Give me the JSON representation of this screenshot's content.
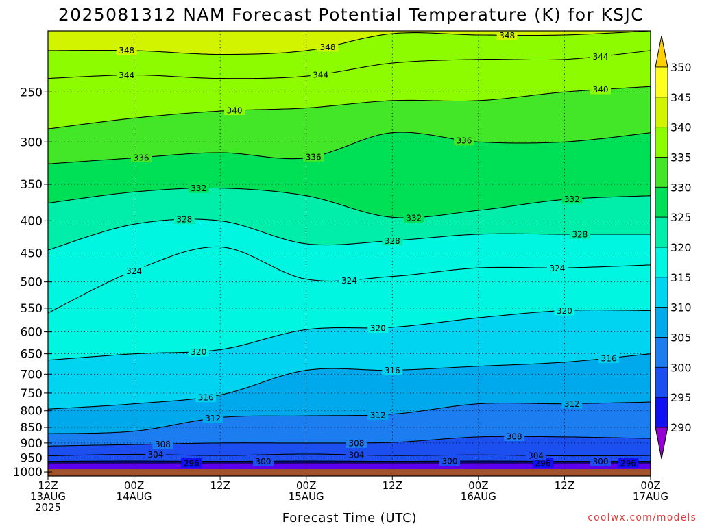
{
  "chart_data": {
    "type": "heatmap",
    "title": "2025081312 NAM Forecast Potential Temperature (K) for KSJC",
    "xlabel": "Forecast Time (UTC)",
    "ylabel": "",
    "x_ticks": [
      {
        "line1": "12Z",
        "line2": "13AUG",
        "line3": "2025"
      },
      {
        "line1": "00Z",
        "line2": "14AUG",
        "line3": ""
      },
      {
        "line1": "12Z",
        "line2": "",
        "line3": ""
      },
      {
        "line1": "00Z",
        "line2": "15AUG",
        "line3": ""
      },
      {
        "line1": "12Z",
        "line2": "",
        "line3": ""
      },
      {
        "line1": "00Z",
        "line2": "16AUG",
        "line3": ""
      },
      {
        "line1": "12Z",
        "line2": "",
        "line3": ""
      },
      {
        "line1": "00Z",
        "line2": "17AUG",
        "line3": ""
      }
    ],
    "forecast_hours": [
      0,
      12,
      24,
      36,
      48,
      60,
      72,
      84
    ],
    "xlim": [
      0,
      84
    ],
    "y_axis": "pressure (hPa), inverted, log-scaled",
    "y_ticks": [
      250,
      300,
      350,
      400,
      450,
      500,
      550,
      600,
      650,
      700,
      750,
      800,
      850,
      900,
      950,
      1000
    ],
    "ylim": [
      1015,
      200
    ],
    "grid": true,
    "colorbar": {
      "position": "right",
      "ticks": [
        290,
        295,
        300,
        305,
        310,
        315,
        320,
        325,
        330,
        335,
        340,
        345,
        350
      ],
      "colors": [
        "#9400d3",
        "#5a00ee",
        "#1010f0",
        "#1c4ff0",
        "#1c7df0",
        "#00a9ec",
        "#00d4f0",
        "#00f6e0",
        "#00eeaa",
        "#00e056",
        "#44e628",
        "#8efc00",
        "#d2f400",
        "#ffff20",
        "#ffd000"
      ]
    },
    "contour_interval": 4,
    "series": [
      {
        "value": 296,
        "label_hours": [
          20,
          69,
          81
        ],
        "pressure": [
          968,
          968,
          968,
          968,
          968,
          968,
          968,
          968
        ]
      },
      {
        "value": 300,
        "label_hours": [
          30,
          56,
          77
        ],
        "pressure": [
          962,
          961,
          962,
          961,
          962,
          961,
          962,
          962
        ]
      },
      {
        "value": 304,
        "label_hours": [
          15,
          43,
          68
        ],
        "pressure": [
          943,
          938,
          942,
          937,
          942,
          940,
          943,
          942
        ]
      },
      {
        "value": 308,
        "label_hours": [
          16,
          43,
          65
        ],
        "pressure": [
          910,
          905,
          900,
          900,
          898,
          880,
          880,
          885
        ]
      },
      {
        "value": 312,
        "label_hours": [
          23,
          46,
          73
        ],
        "pressure": [
          870,
          862,
          820,
          815,
          810,
          780,
          780,
          775
        ]
      },
      {
        "value": 316,
        "label_hours": [
          22,
          48,
          78
        ],
        "pressure": [
          795,
          780,
          755,
          690,
          690,
          680,
          670,
          650
        ]
      },
      {
        "value": 320,
        "label_hours": [
          21,
          46,
          72
        ],
        "pressure": [
          665,
          650,
          640,
          595,
          590,
          570,
          555,
          555
        ]
      },
      {
        "value": 324,
        "label_hours": [
          12,
          42,
          71
        ],
        "pressure": [
          560,
          480,
          440,
          495,
          490,
          475,
          475,
          470
        ]
      },
      {
        "value": 328,
        "label_hours": [
          19,
          48,
          74
        ],
        "pressure": [
          445,
          405,
          400,
          435,
          430,
          420,
          420,
          420
        ]
      },
      {
        "value": 332,
        "label_hours": [
          21,
          51,
          73
        ],
        "pressure": [
          375,
          360,
          355,
          365,
          395,
          385,
          370,
          365
        ]
      },
      {
        "value": 336,
        "label_hours": [
          13,
          37,
          58
        ],
        "pressure": [
          325,
          318,
          312,
          318,
          290,
          300,
          300,
          290
        ]
      },
      {
        "value": 340,
        "label_hours": [
          26,
          77
        ],
        "pressure": [
          286,
          275,
          268,
          265,
          258,
          258,
          250,
          245
        ]
      },
      {
        "value": 344,
        "label_hours": [
          11,
          38,
          77
        ],
        "pressure": [
          238,
          235,
          238,
          236,
          225,
          222,
          222,
          215
        ]
      },
      {
        "value": 348,
        "label_hours": [
          11,
          39,
          64
        ],
        "pressure": [
          215,
          215,
          218,
          215,
          202,
          203,
          203,
          200
        ]
      }
    ],
    "surface_pressure": 990
  },
  "footer": {
    "credit": "coolwx.com/models"
  }
}
